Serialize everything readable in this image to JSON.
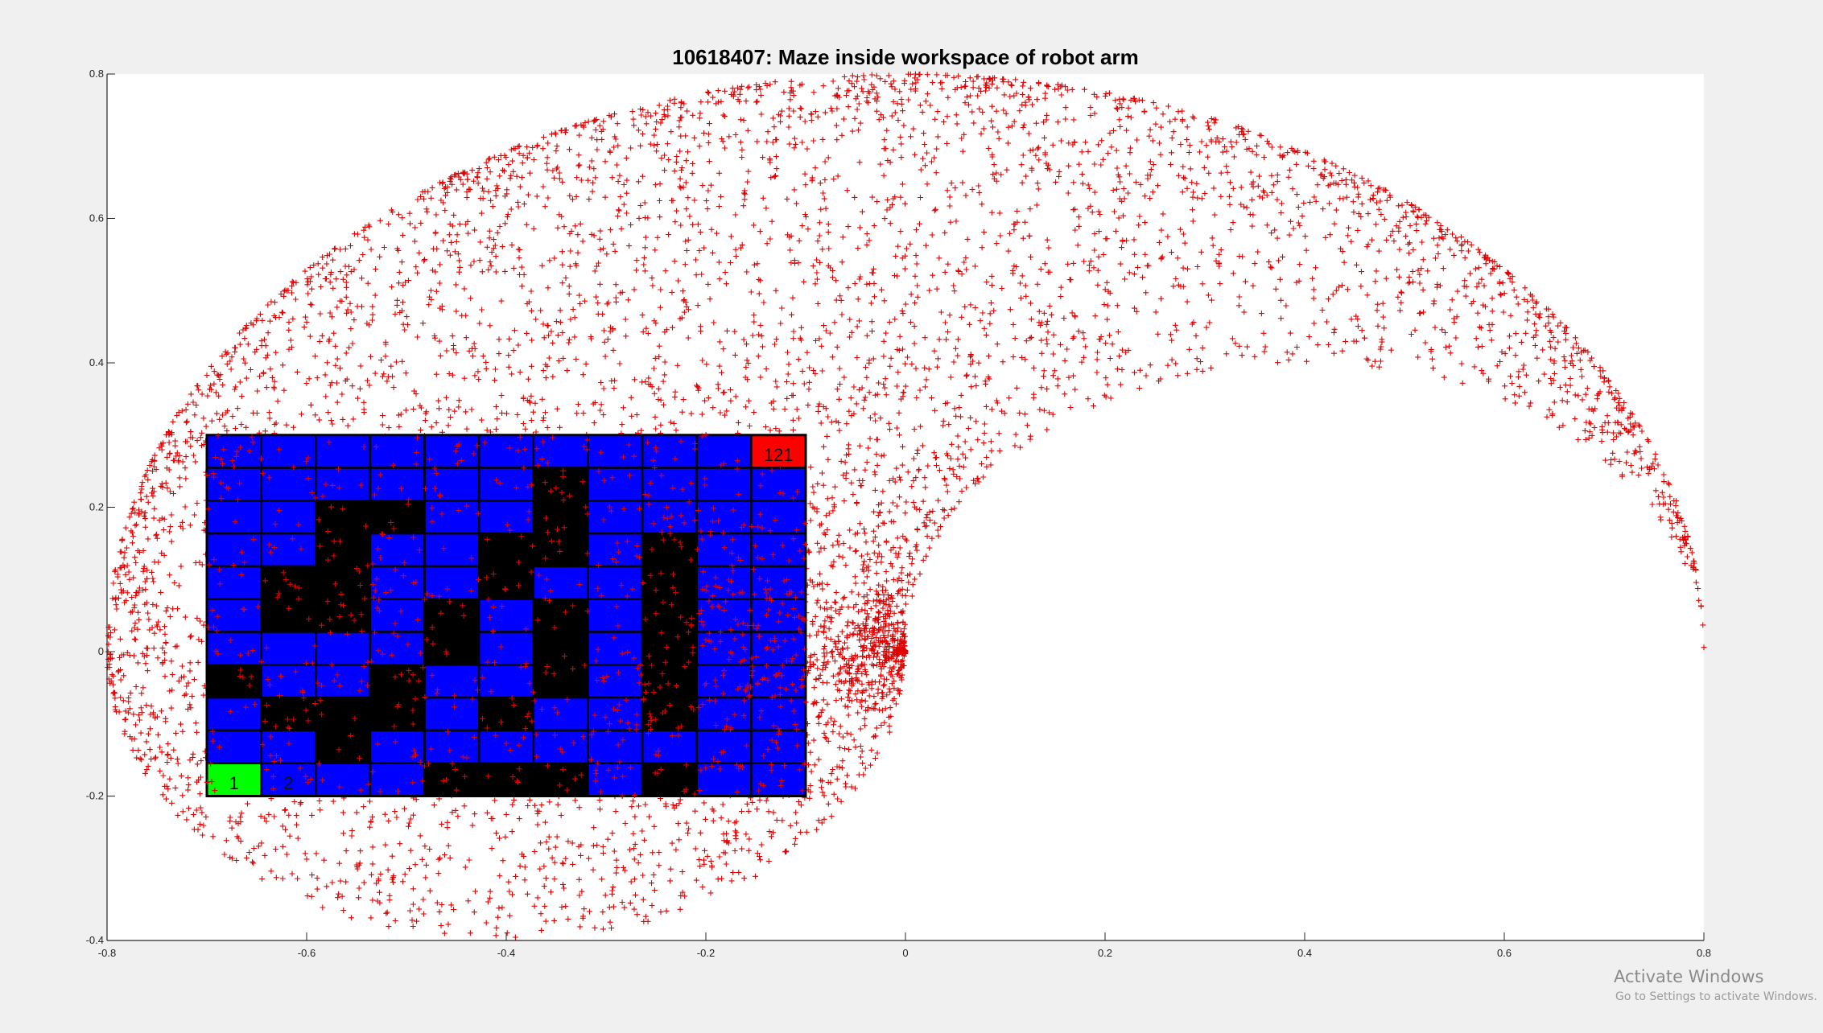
{
  "chart_data": {
    "type": "scatter",
    "title": "10618407: Maze inside workspace of robot arm",
    "xlim": [
      -0.8,
      0.8
    ],
    "ylim": [
      -0.4,
      0.8
    ],
    "xticks": [
      "-0.8",
      "-0.6",
      "-0.4",
      "-0.2",
      "0",
      "0.2",
      "0.4",
      "0.6",
      "0.8"
    ],
    "yticks": [
      "-0.4",
      "-0.2",
      "0",
      "0.2",
      "0.4",
      "0.6",
      "0.8"
    ],
    "grid": false,
    "point_color": "#e00000",
    "point_marker": "+",
    "maze": {
      "x_range": [
        -0.7,
        -0.1
      ],
      "y_range": [
        -0.2,
        0.3
      ],
      "columns": 11,
      "rows": 11,
      "open_color": "#0000ff",
      "wall_color": "#000000",
      "start_color": "#00ff00",
      "goal_color": "#ff0000",
      "start_cell": 1,
      "goal_cell": 121,
      "cell_labels": [
        "1",
        "2",
        "121"
      ],
      "layout_top_to_bottom": [
        "OOOOOOOOOOG",
        "OOOOOOWOOOO",
        "OOWWOOWOOOO",
        "OOWOOWWOWOO",
        "OWWOOWOOWOO",
        "OWWOWOWOWOO",
        "OOOOWOWOWOO",
        "WOOWOOWOWOO",
        "OWWWOWOOWOO",
        "OOWOOOOOOOO",
        "SOOOWWWOWOO"
      ]
    }
  },
  "watermark": {
    "title": "Activate Windows",
    "subtitle": "Go to Settings to activate Windows."
  }
}
